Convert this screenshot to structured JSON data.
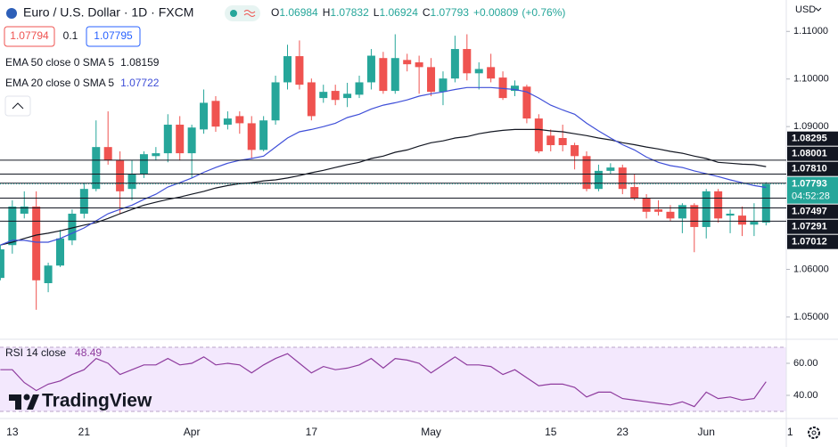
{
  "chart_data": [
    {
      "type": "candlestick",
      "title": "Euro / U.S. Dollar · 1D · FXCM",
      "currency": "USD",
      "ohlc_labels": [
        "O",
        "H",
        "L",
        "C"
      ],
      "change": "+0.00809",
      "change_pct": "(+0.76%)",
      "bid": 1.07794,
      "spread": 0.1,
      "ask": 1.07795,
      "countdown": "04:52:28",
      "up_color": "#26a69a",
      "down_color": "#ef5350",
      "open": [
        1.0582,
        1.0651,
        1.0717,
        1.0732,
        1.0571,
        1.0608,
        1.0661,
        1.0717,
        1.0769,
        1.0857,
        1.0829,
        1.0769,
        1.0801,
        1.0838,
        1.0844,
        1.0904,
        1.0844,
        1.0894,
        1.0954,
        1.0904,
        1.0922,
        1.0907,
        1.0851,
        1.0913,
        1.0993,
        1.1048,
        1.0993,
        1.096,
        1.0975,
        1.096,
        1.0967,
        1.0993,
        1.1044,
        1.0975,
        1.104,
        1.1035,
        1.1025,
        1.0973,
        1.1001,
        1.1063,
        1.1012,
        1.1025,
        1.1003,
        1.0975,
        1.0984,
        1.0917,
        1.0881,
        1.0876,
        1.0861,
        1.0838,
        1.0769,
        1.0807,
        1.0814,
        1.0773,
        1.075,
        1.0726,
        1.0721,
        1.0707,
        1.0735,
        1.0689,
        1.0764,
        1.0713,
        1.0713,
        1.0694,
        1.06984
      ],
      "high": [
        1.0651,
        1.0745,
        1.0764,
        1.0764,
        1.0614,
        1.0683,
        1.0726,
        1.0782,
        1.0913,
        1.0932,
        1.0848,
        1.0829,
        1.0848,
        1.0857,
        1.0926,
        1.0922,
        1.0904,
        1.0978,
        1.0964,
        1.0932,
        1.0932,
        1.0922,
        1.0922,
        1.1007,
        1.1072,
        1.1081,
        1.1001,
        1.0988,
        1.0988,
        1.0992,
        1.1007,
        1.1063,
        1.1057,
        1.1094,
        1.1053,
        1.1049,
        1.1044,
        1.1016,
        1.1091,
        1.1094,
        1.1035,
        1.1053,
        1.1016,
        1.0997,
        1.0988,
        1.0926,
        1.0894,
        1.0904,
        1.0866,
        1.0848,
        1.082,
        1.0823,
        1.082,
        1.0801,
        1.0758,
        1.0745,
        1.0735,
        1.0739,
        1.0739,
        1.0769,
        1.0769,
        1.0726,
        1.0732,
        1.0739,
        1.07832
      ],
      "low": [
        1.0577,
        1.0633,
        1.0707,
        1.0515,
        1.0552,
        1.0605,
        1.0651,
        1.0707,
        1.0764,
        1.082,
        1.0717,
        1.0745,
        1.0792,
        1.0829,
        1.0825,
        1.0829,
        1.0792,
        1.0885,
        1.0889,
        1.0894,
        1.0885,
        1.0833,
        1.0848,
        1.0904,
        1.0978,
        1.0978,
        1.0913,
        1.095,
        1.0945,
        1.0941,
        1.096,
        1.0978,
        1.0969,
        1.0969,
        1.1016,
        1.0969,
        1.0964,
        1.0945,
        1.0993,
        1.0997,
        1.0978,
        1.0993,
        1.0956,
        1.0964,
        1.0907,
        1.0844,
        1.0848,
        1.0848,
        1.081,
        1.0764,
        1.0764,
        1.0801,
        1.0758,
        1.0745,
        1.0707,
        1.0713,
        1.0702,
        1.0676,
        1.0636,
        1.0665,
        1.0698,
        1.0676,
        1.067,
        1.067,
        1.06924
      ],
      "close": [
        1.0642,
        1.0732,
        1.0732,
        1.0577,
        1.0608,
        1.0665,
        1.0717,
        1.0769,
        1.0857,
        1.0829,
        1.0764,
        1.0801,
        1.0842,
        1.0844,
        1.0904,
        1.0844,
        1.0898,
        1.095,
        1.09,
        1.0917,
        1.0907,
        1.0851,
        1.0913,
        1.0993,
        1.1048,
        1.0988,
        1.0922,
        1.0973,
        1.0956,
        1.0969,
        1.0993,
        1.1049,
        1.0975,
        1.1044,
        1.1031,
        1.1025,
        1.0973,
        1.1001,
        1.1063,
        1.1012,
        1.1021,
        1.1001,
        1.096,
        1.0986,
        1.0917,
        1.0848,
        1.0861,
        1.0861,
        1.0838,
        1.0769,
        1.0807,
        1.0814,
        1.0769,
        1.075,
        1.0721,
        1.0721,
        1.0707,
        1.0735,
        1.0689,
        1.0764,
        1.0707,
        1.0717,
        1.0694,
        1.07,
        1.07793
      ],
      "series": [
        {
          "name": "EMA 50 close 0 SMA 5",
          "color": "#131722",
          "values": [
            1.0651,
            1.0657,
            1.0665,
            1.0672,
            1.0676,
            1.0681,
            1.0687,
            1.0693,
            1.0698,
            1.0707,
            1.0717,
            1.0726,
            1.0735,
            1.0741,
            1.0747,
            1.0752,
            1.0758,
            1.0764,
            1.0771,
            1.0776,
            1.078,
            1.0782,
            1.0786,
            1.0788,
            1.0792,
            1.0797,
            1.0803,
            1.0808,
            1.0814,
            1.082,
            1.0825,
            1.0833,
            1.0838,
            1.0846,
            1.0851,
            1.0859,
            1.0866,
            1.087,
            1.0876,
            1.0879,
            1.0885,
            1.0889,
            1.0892,
            1.0894,
            1.0894,
            1.0894,
            1.0891,
            1.0889,
            1.0885,
            1.0881,
            1.0876,
            1.0872,
            1.0866,
            1.0862,
            1.0857,
            1.0853,
            1.0848,
            1.0844,
            1.0838,
            1.0833,
            1.0825,
            1.0823,
            1.0821,
            1.082,
            1.08159
          ]
        },
        {
          "name": "EMA 20 close 0 SMA 5",
          "color": "#3f4fd8",
          "values": [
            1.0651,
            1.0661,
            1.0661,
            1.0657,
            1.0657,
            1.0665,
            1.0676,
            1.0687,
            1.0702,
            1.0717,
            1.0726,
            1.0735,
            1.0747,
            1.0758,
            1.0773,
            1.0782,
            1.0792,
            1.0804,
            1.0814,
            1.0823,
            1.0829,
            1.0833,
            1.0838,
            1.0857,
            1.0876,
            1.0889,
            1.0894,
            1.09,
            1.0907,
            1.0919,
            1.0926,
            1.0937,
            1.0945,
            1.095,
            1.0956,
            1.0964,
            1.0969,
            1.0973,
            1.0978,
            1.0982,
            1.0982,
            1.0982,
            1.098,
            1.0978,
            1.0973,
            1.096,
            1.0945,
            1.0935,
            1.0926,
            1.0907,
            1.0891,
            1.0876,
            1.0862,
            1.0851,
            1.0836,
            1.0825,
            1.0818,
            1.0814,
            1.0807,
            1.0801,
            1.0795,
            1.0788,
            1.0782,
            1.0776,
            1.07722
          ]
        }
      ],
      "price_lines": [
        1.08295,
        1.08001,
        {
          "value": 1.0781,
          "label": "1.07810"
        },
        1.07497,
        1.07291,
        1.07012
      ],
      "ylim": [
        1.0455,
        1.1166
      ],
      "yticks": [
        {
          "value": 1.11,
          "label": "1.11000"
        },
        {
          "value": 1.1,
          "label": "1.10000"
        },
        {
          "value": 1.09,
          "label": "1.09000"
        },
        {
          "value": 1.06,
          "label": "1.06000"
        },
        {
          "value": 1.05,
          "label": "1.05000"
        }
      ],
      "xlim": [
        -0.03,
        65.69
      ],
      "xticks": [
        {
          "value": 1,
          "label": "13"
        },
        {
          "value": 7,
          "label": "21"
        },
        {
          "value": 16,
          "label": "Apr"
        },
        {
          "value": 26,
          "label": "17"
        },
        {
          "value": 36,
          "label": "May"
        },
        {
          "value": 46,
          "label": "15"
        },
        {
          "value": 52,
          "label": "23"
        },
        {
          "value": 59,
          "label": "Jun"
        },
        {
          "value": 66,
          "label": "1"
        }
      ]
    },
    {
      "type": "line",
      "title": "RSI 14 close",
      "color": "#8e3b9e",
      "values": [
        56,
        56,
        48,
        43,
        47,
        49,
        53,
        56,
        63,
        60,
        53,
        56,
        59,
        59,
        63,
        59,
        60,
        64,
        59,
        60,
        59,
        54,
        59,
        63,
        66,
        60,
        54,
        58,
        56,
        57,
        59,
        63,
        57,
        63,
        62,
        60,
        54,
        59,
        64,
        59,
        59,
        58,
        53,
        56,
        51,
        46,
        47,
        47,
        45,
        39,
        42,
        42,
        38,
        37,
        36,
        35,
        34,
        36,
        33,
        42,
        38,
        39,
        37,
        38,
        48.49
      ],
      "ylim": [
        25.56,
        72.78
      ],
      "yticks": [
        {
          "value": 60,
          "label": "60.00"
        },
        {
          "value": 40,
          "label": "40.00"
        }
      ]
    }
  ],
  "watermark": "TradingView"
}
